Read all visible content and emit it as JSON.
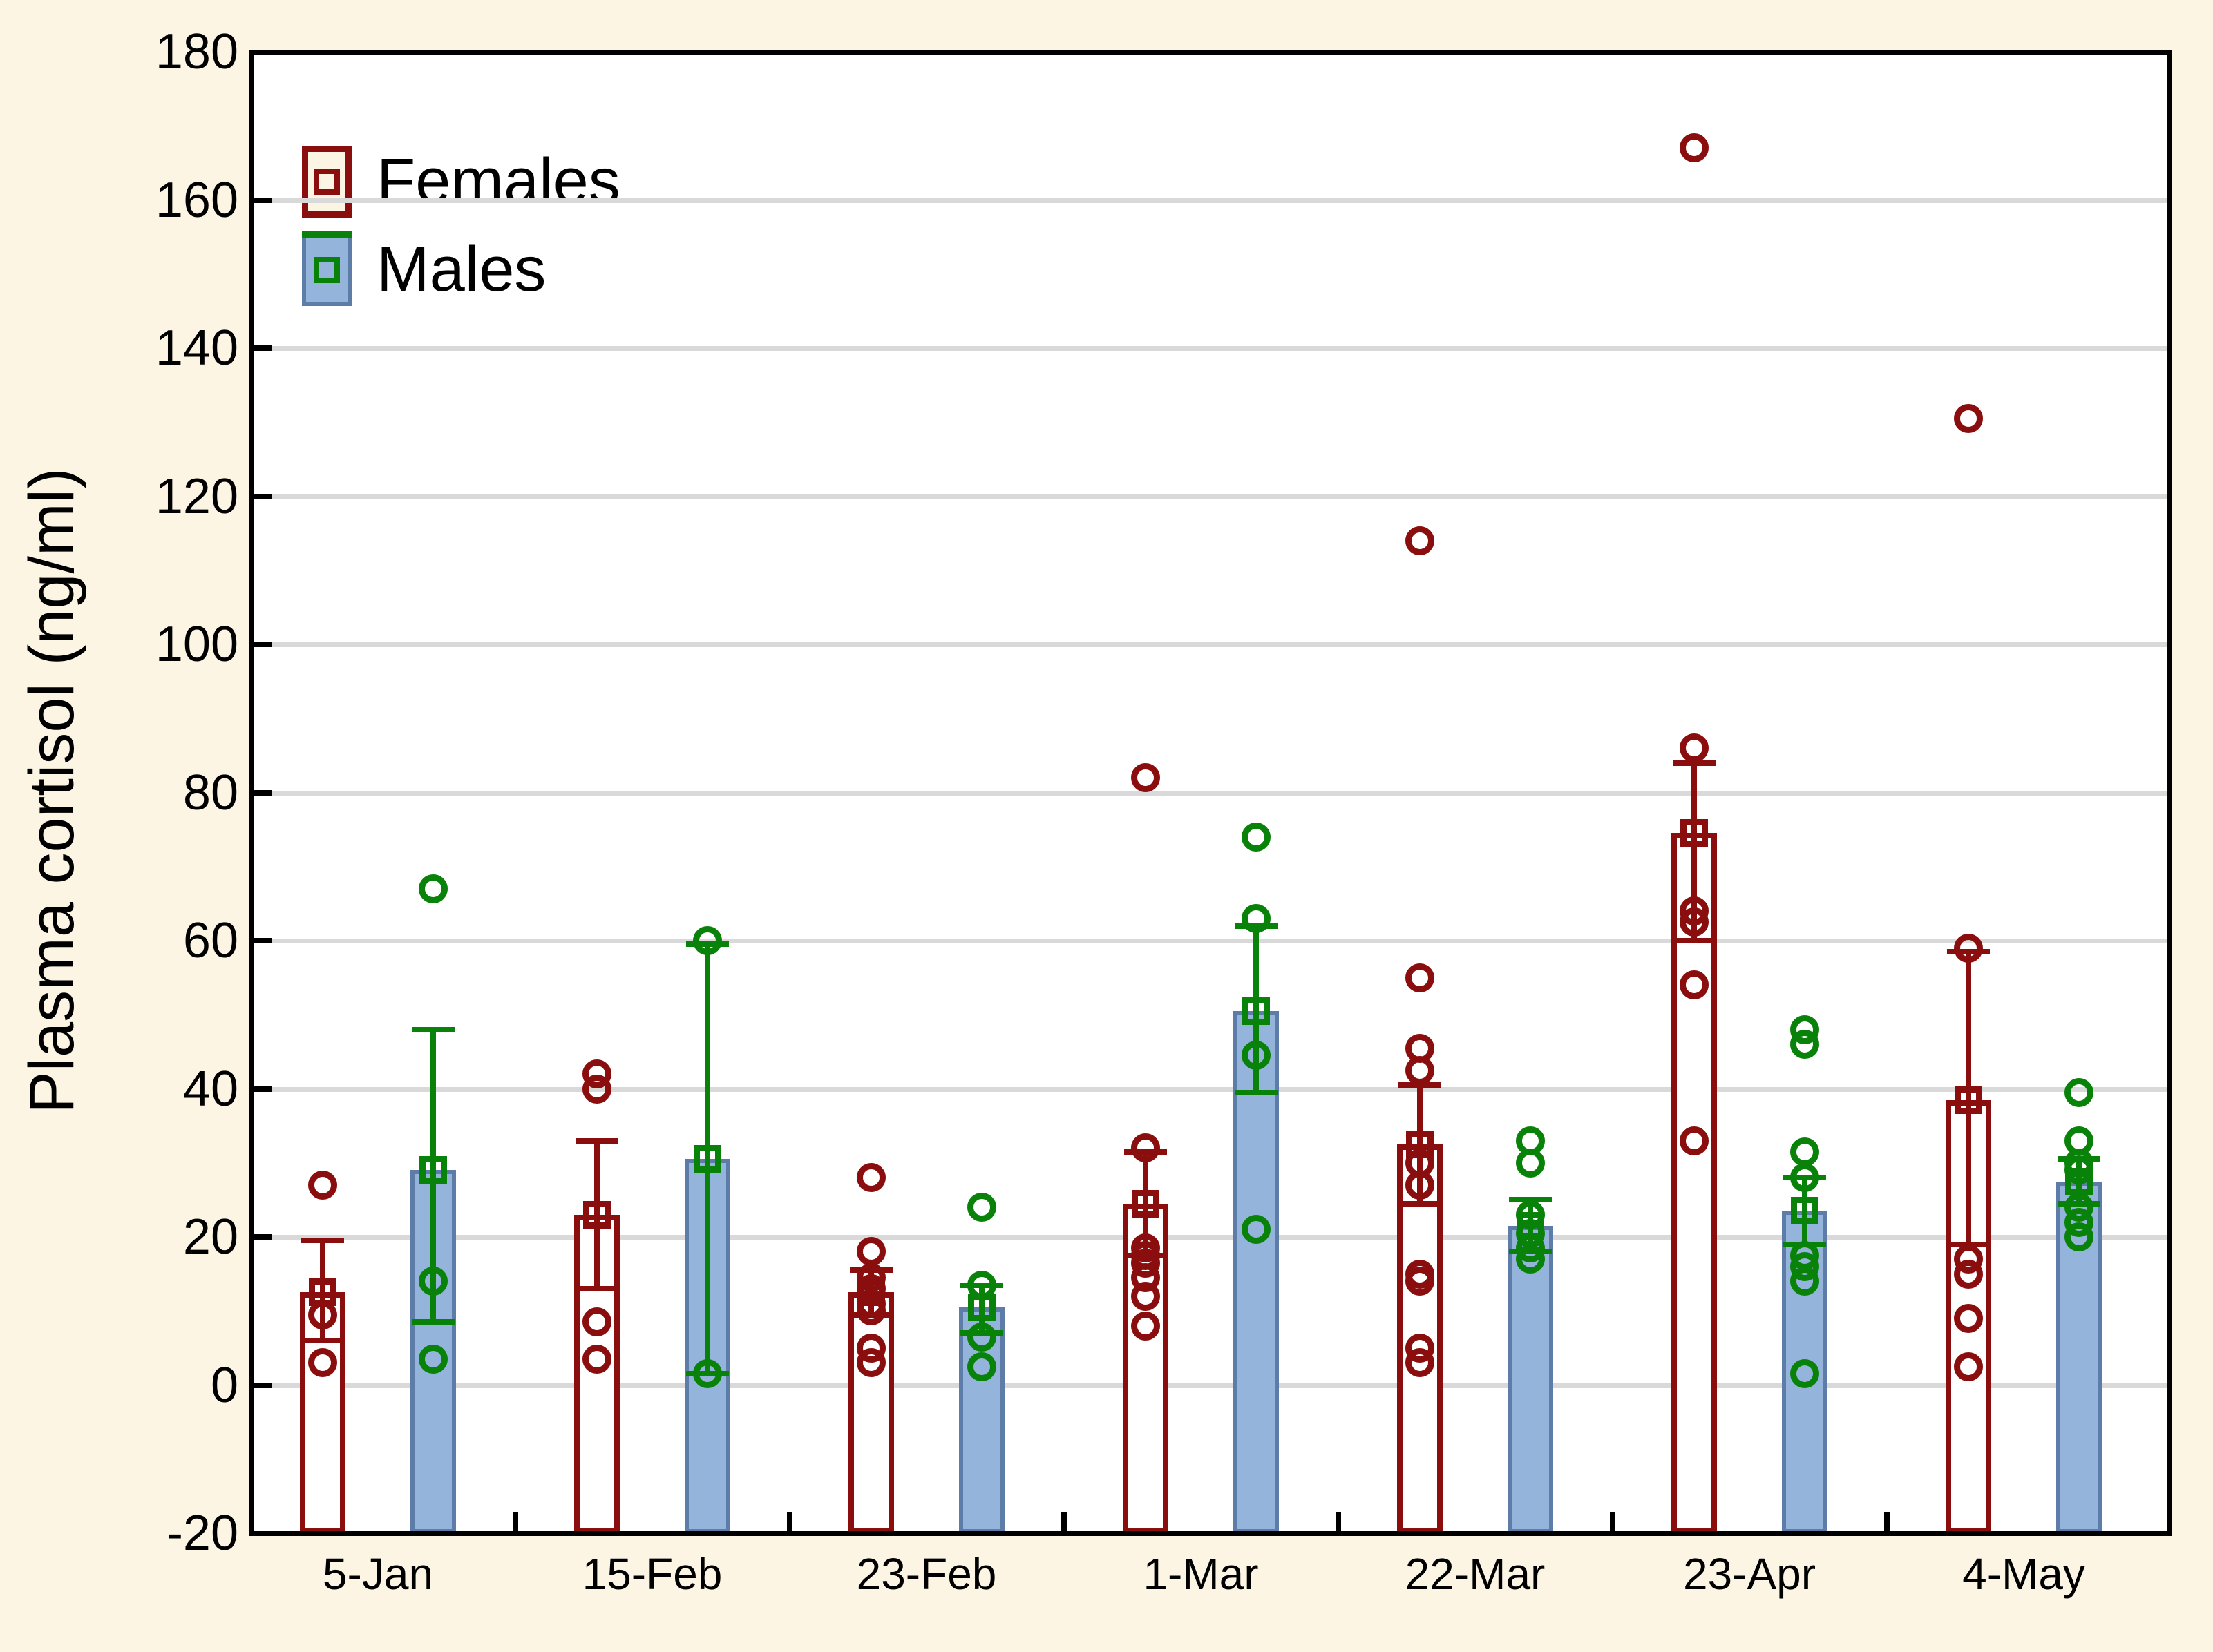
{
  "page": {
    "background_color": "#FCF5E3",
    "plot_background_color": "#FFFFFF",
    "gridline_color": "#D9D9D9",
    "axis_color": "#000000"
  },
  "chart_data": {
    "type": "bar",
    "title": "",
    "xlabel": "",
    "ylabel": "Plasma cortisol (ng/ml)",
    "ylim": [
      -20,
      180
    ],
    "yticks": [
      180,
      160,
      140,
      120,
      100,
      80,
      60,
      40,
      20,
      0,
      -20
    ],
    "grid": "horizontal",
    "legend_position": "top-left-inside",
    "bar_style": "mean bars with error whiskers, open-square mean markers and open-circle individual data points",
    "categories": [
      "5-Jan",
      "15-Feb",
      "23-Feb",
      "1-Mar",
      "22-Mar",
      "23-Apr",
      "4-May"
    ],
    "series": [
      {
        "name": "Females",
        "marker_color": "#8B0E0E",
        "bar_fill": "#FFFFFF",
        "bar_border": "#8B0E0E",
        "means": [
          12.5,
          23,
          12.5,
          24.5,
          32.5,
          74.5,
          38.5
        ],
        "err_lo": [
          6,
          13,
          9.5,
          17.5,
          24.5,
          60,
          19
        ],
        "err_hi": [
          19.5,
          33,
          15.5,
          31.5,
          40.5,
          84,
          58.5
        ],
        "points": [
          [
            27,
            9.5,
            3
          ],
          [
            42,
            40,
            8.5,
            3.5
          ],
          [
            28,
            18,
            14.5,
            13,
            11,
            10,
            5,
            3
          ],
          [
            82,
            32,
            18.5,
            17.5,
            16.5,
            14.5,
            12,
            8
          ],
          [
            114,
            55,
            45.5,
            42.5,
            30,
            27,
            15,
            14,
            5,
            3
          ],
          [
            167,
            86,
            64,
            62.5,
            54,
            33
          ],
          [
            130.5,
            59,
            17,
            15,
            9,
            2.5
          ]
        ]
      },
      {
        "name": "Males",
        "marker_color": "#088208",
        "bar_fill": "#94B4DC",
        "bar_border": "#5E7CA8",
        "means": [
          29,
          30.5,
          10.5,
          50.5,
          21.5,
          23.5,
          27.5
        ],
        "err_lo": [
          8.5,
          1.5,
          7,
          39.5,
          18,
          19,
          24.5
        ],
        "err_hi": [
          48,
          59.5,
          13.5,
          62,
          25,
          28,
          30.5
        ],
        "points": [
          [
            67,
            14,
            3.5
          ],
          [
            60,
            1.5
          ],
          [
            24,
            13.5,
            6.5,
            2.5
          ],
          [
            74,
            63,
            44.5,
            21
          ],
          [
            33,
            30,
            23,
            20.5,
            18.5,
            17
          ],
          [
            48,
            46,
            31.5,
            28,
            17.5,
            16,
            14,
            1.5
          ],
          [
            39.5,
            33,
            30,
            29,
            24,
            22,
            20
          ]
        ]
      }
    ]
  }
}
